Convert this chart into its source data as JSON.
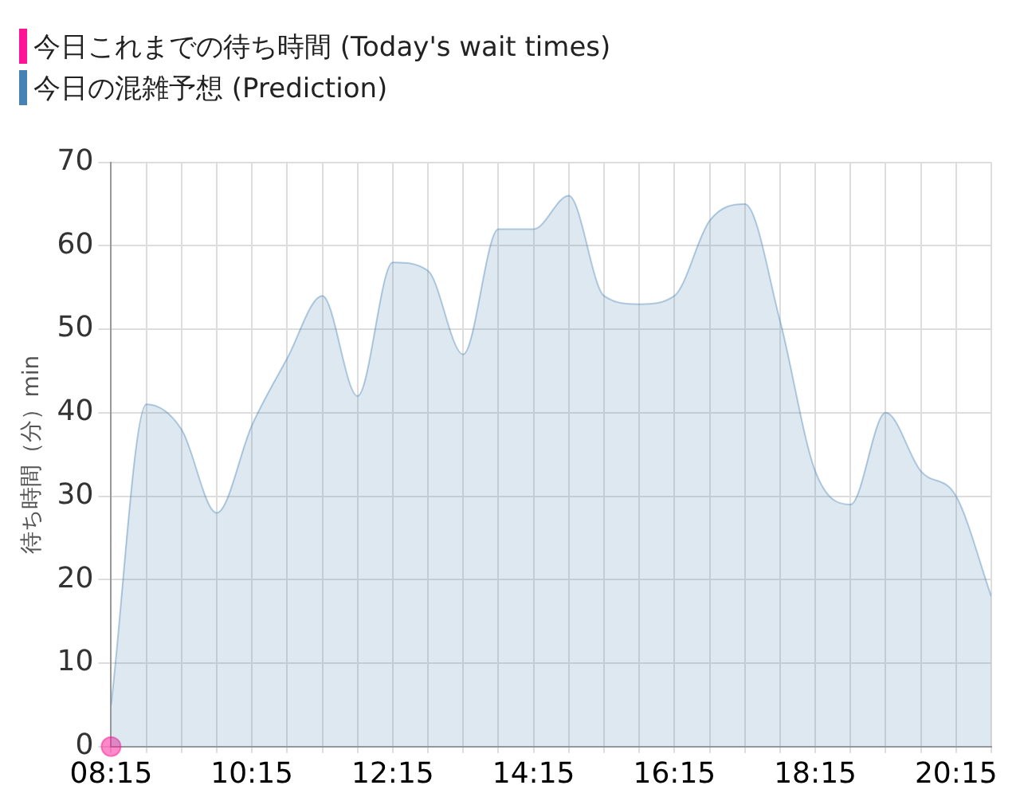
{
  "chart_data": {
    "type": "area",
    "ylabel": "待ち時間（分）min",
    "legend": "top left",
    "grid": true,
    "line_style": "solid",
    "x": [
      8.25,
      8.75,
      9.25,
      9.75,
      10.25,
      10.75,
      11.25,
      11.75,
      12.25,
      12.75,
      13.25,
      13.75,
      14.25,
      14.75,
      15.25,
      15.75,
      16.25,
      16.75,
      17.25,
      17.75,
      18.25,
      18.75,
      19.25,
      19.75,
      20.25,
      20.75
    ],
    "xlim": [
      8.25,
      20.75
    ],
    "xticks": [
      {
        "value": 8.25,
        "label": "08:15"
      },
      {
        "value": 8.75,
        "label": null
      },
      {
        "value": 9.25,
        "label": null
      },
      {
        "value": 9.75,
        "label": null
      },
      {
        "value": 10.25,
        "label": "10:15"
      },
      {
        "value": 10.75,
        "label": null
      },
      {
        "value": 11.25,
        "label": null
      },
      {
        "value": 11.75,
        "label": null
      },
      {
        "value": 12.25,
        "label": "12:15"
      },
      {
        "value": 12.75,
        "label": null
      },
      {
        "value": 13.25,
        "label": null
      },
      {
        "value": 13.75,
        "label": null
      },
      {
        "value": 14.25,
        "label": "14:15"
      },
      {
        "value": 14.75,
        "label": null
      },
      {
        "value": 15.25,
        "label": null
      },
      {
        "value": 15.75,
        "label": null
      },
      {
        "value": 16.25,
        "label": "16:15"
      },
      {
        "value": 16.75,
        "label": null
      },
      {
        "value": 17.25,
        "label": null
      },
      {
        "value": 17.75,
        "label": null
      },
      {
        "value": 18.25,
        "label": "18:15"
      },
      {
        "value": 18.75,
        "label": null
      },
      {
        "value": 19.25,
        "label": null
      },
      {
        "value": 19.75,
        "label": null
      },
      {
        "value": 20.25,
        "label": "20:15"
      },
      {
        "value": 20.75,
        "label": null
      }
    ],
    "ylim": [
      0,
      70
    ],
    "yticks": [
      0,
      10,
      20,
      30,
      40,
      50,
      60,
      70
    ],
    "series": [
      {
        "name": "今日これまでの待ち時間 (Today's wait times)",
        "type": "scatter",
        "marker": "circle",
        "color": "#ff1493",
        "x": [
          8.25
        ],
        "values": [
          0
        ]
      },
      {
        "name": "今日の混雑予想 (Prediction)",
        "marker": "none",
        "color": "#4682b4",
        "values": [
          5,
          41,
          38,
          28,
          38.5,
          46.5,
          54,
          42,
          58,
          57,
          47,
          62,
          62,
          66,
          54,
          53,
          54,
          63,
          65,
          51,
          33,
          29,
          40,
          33,
          30,
          18
        ]
      }
    ]
  }
}
